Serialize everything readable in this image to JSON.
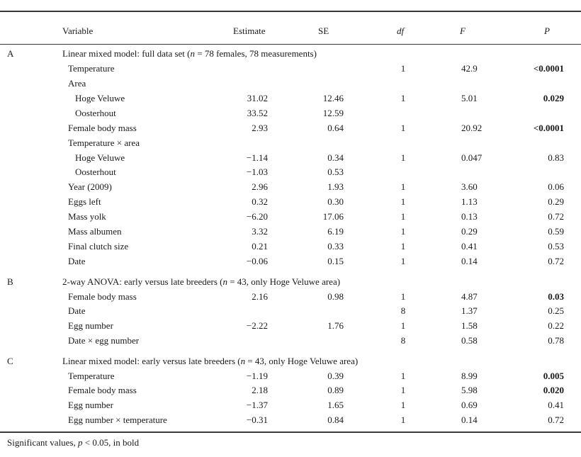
{
  "table": {
    "header": {
      "variable": "Variable",
      "estimate": "Estimate",
      "se": "SE",
      "df": "df",
      "f": "F",
      "p": "P"
    },
    "rows": [
      {
        "section": "A",
        "label": "Linear mixed model: full data set (n = 78 females, 78 measurements)",
        "indent": 0,
        "estimate": "",
        "se": "",
        "df": "",
        "f": "",
        "p": "",
        "p_bold": false
      },
      {
        "section": "",
        "label": "Temperature",
        "indent": 1,
        "estimate": "",
        "se": "",
        "df": "1",
        "f": "42.9",
        "p": "<0.0001",
        "p_bold": true
      },
      {
        "section": "",
        "label": "Area",
        "indent": 1,
        "estimate": "",
        "se": "",
        "df": "",
        "f": "",
        "p": "",
        "p_bold": false
      },
      {
        "section": "",
        "label": "Hoge Veluwe",
        "indent": 2,
        "estimate": "31.02",
        "se": "12.46",
        "df": "1",
        "f": "5.01",
        "p": "0.029",
        "p_bold": true
      },
      {
        "section": "",
        "label": "Oosterhout",
        "indent": 2,
        "estimate": "33.52",
        "se": "12.59",
        "df": "",
        "f": "",
        "p": "",
        "p_bold": false
      },
      {
        "section": "",
        "label": "Female body mass",
        "indent": 1,
        "estimate": "2.93",
        "se": "0.64",
        "df": "1",
        "f": "20.92",
        "p": "<0.0001",
        "p_bold": true
      },
      {
        "section": "",
        "label": "Temperature × area",
        "indent": 1,
        "estimate": "",
        "se": "",
        "df": "",
        "f": "",
        "p": "",
        "p_bold": false
      },
      {
        "section": "",
        "label": "Hoge Veluwe",
        "indent": 2,
        "estimate": "−1.14",
        "se": "0.34",
        "df": "1",
        "f": "0.047",
        "p": "0.83",
        "p_bold": false
      },
      {
        "section": "",
        "label": "Oosterhout",
        "indent": 2,
        "estimate": "−1.03",
        "se": "0.53",
        "df": "",
        "f": "",
        "p": "",
        "p_bold": false
      },
      {
        "section": "",
        "label": "Year (2009)",
        "indent": 1,
        "estimate": "2.96",
        "se": "1.93",
        "df": "1",
        "f": "3.60",
        "p": "0.06",
        "p_bold": false
      },
      {
        "section": "",
        "label": "Eggs left",
        "indent": 1,
        "estimate": "0.32",
        "se": "0.30",
        "df": "1",
        "f": "1.13",
        "p": "0.29",
        "p_bold": false
      },
      {
        "section": "",
        "label": "Mass yolk",
        "indent": 1,
        "estimate": "−6.20",
        "se": "17.06",
        "df": "1",
        "f": "0.13",
        "p": "0.72",
        "p_bold": false
      },
      {
        "section": "",
        "label": "Mass albumen",
        "indent": 1,
        "estimate": "3.32",
        "se": "6.19",
        "df": "1",
        "f": "0.29",
        "p": "0.59",
        "p_bold": false
      },
      {
        "section": "",
        "label": "Final clutch size",
        "indent": 1,
        "estimate": "0.21",
        "se": "0.33",
        "df": "1",
        "f": "0.41",
        "p": "0.53",
        "p_bold": false
      },
      {
        "section": "",
        "label": "Date",
        "indent": 1,
        "estimate": "−0.06",
        "se": "0.15",
        "df": "1",
        "f": "0.14",
        "p": "0.72",
        "p_bold": false
      },
      {
        "section": "B",
        "label": "2-way ANOVA: early versus late breeders (n = 43, only Hoge Veluwe area)",
        "indent": 0,
        "estimate": "",
        "se": "",
        "df": "",
        "f": "",
        "p": "",
        "p_bold": false
      },
      {
        "section": "",
        "label": "Female body mass",
        "indent": 1,
        "estimate": "2.16",
        "se": "0.98",
        "df": "1",
        "f": "4.87",
        "p": "0.03",
        "p_bold": true
      },
      {
        "section": "",
        "label": "Date",
        "indent": 1,
        "estimate": "",
        "se": "",
        "df": "8",
        "f": "1.37",
        "p": "0.25",
        "p_bold": false
      },
      {
        "section": "",
        "label": "Egg number",
        "indent": 1,
        "estimate": "−2.22",
        "se": "1.76",
        "df": "1",
        "f": "1.58",
        "p": "0.22",
        "p_bold": false
      },
      {
        "section": "",
        "label": "Date × egg number",
        "indent": 1,
        "estimate": "",
        "se": "",
        "df": "8",
        "f": "0.58",
        "p": "0.78",
        "p_bold": false
      },
      {
        "section": "C",
        "label": "Linear mixed model: early versus late breeders (n = 43, only Hoge Veluwe area)",
        "indent": 0,
        "estimate": "",
        "se": "",
        "df": "",
        "f": "",
        "p": "",
        "p_bold": false
      },
      {
        "section": "",
        "label": "Temperature",
        "indent": 1,
        "estimate": "−1.19",
        "se": "0.39",
        "df": "1",
        "f": "8.99",
        "p": "0.005",
        "p_bold": true
      },
      {
        "section": "",
        "label": "Female body mass",
        "indent": 1,
        "estimate": "2.18",
        "se": "0.89",
        "df": "1",
        "f": "5.98",
        "p": "0.020",
        "p_bold": true
      },
      {
        "section": "",
        "label": "Egg number",
        "indent": 1,
        "estimate": "−1.37",
        "se": "1.65",
        "df": "1",
        "f": "0.69",
        "p": "0.41",
        "p_bold": false
      },
      {
        "section": "",
        "label": "Egg number × temperature",
        "indent": 1,
        "estimate": "−0.31",
        "se": "0.84",
        "df": "1",
        "f": "0.14",
        "p": "0.72",
        "p_bold": false
      }
    ]
  },
  "footnote": "Significant values, p < 0.05, in bold"
}
